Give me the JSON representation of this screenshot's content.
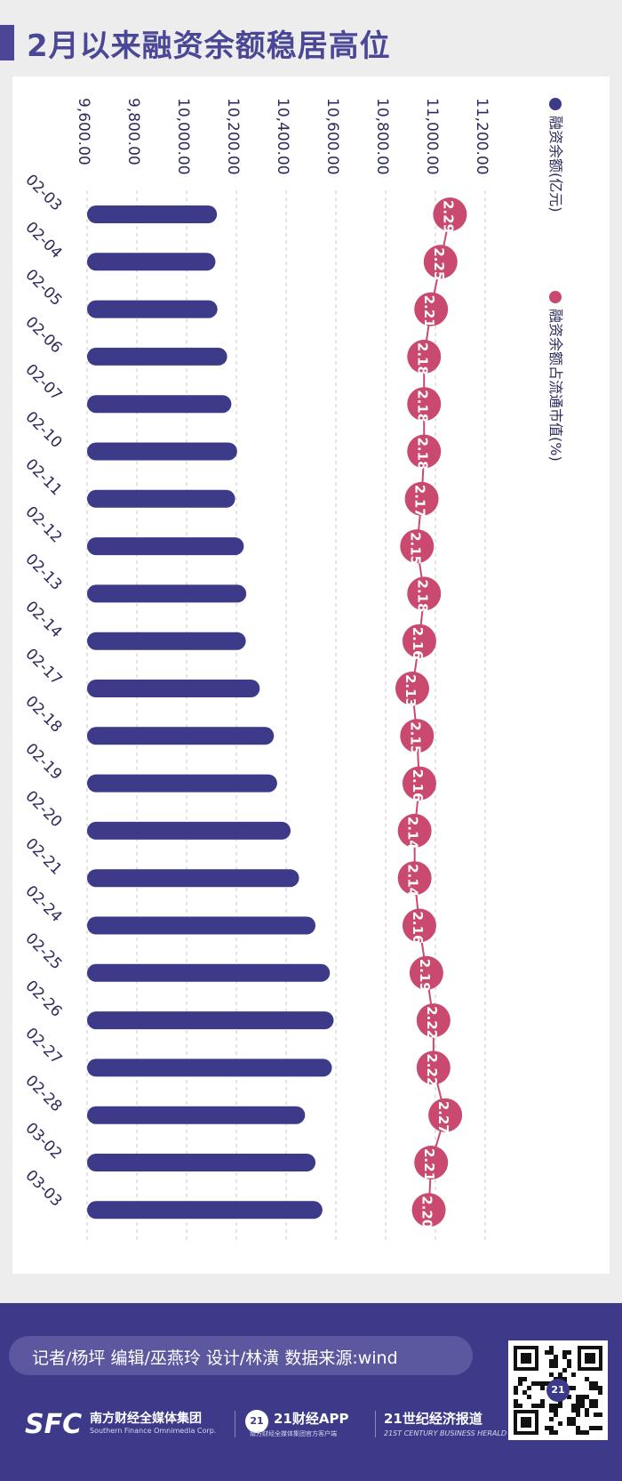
{
  "title": "2月以来融资余额稳居高位",
  "chart_data": {
    "type": "bar",
    "categories": [
      "02-03",
      "02-04",
      "02-05",
      "02-06",
      "02-07",
      "02-10",
      "02-11",
      "02-12",
      "02-13",
      "02-14",
      "02-17",
      "02-18",
      "02-19",
      "02-20",
      "02-21",
      "02-24",
      "02-25",
      "02-26",
      "02-27",
      "02-28",
      "03-02",
      "03-03"
    ],
    "series": [
      {
        "name": "融资余额(亿元)",
        "type": "bar",
        "color": "#3d3a8a",
        "values": [
          10122,
          10116,
          10124,
          10163,
          10180,
          10203,
          10195,
          10230,
          10240,
          10238,
          10294,
          10351,
          10364,
          10418,
          10452,
          10518,
          10576,
          10591,
          10584,
          10476,
          10518,
          10546
        ]
      },
      {
        "name": "融资余额占流通市值(%)",
        "type": "line",
        "color": "#c94a6e",
        "values": [
          2.29,
          2.25,
          2.21,
          2.18,
          2.18,
          2.18,
          2.17,
          2.15,
          2.18,
          2.16,
          2.13,
          2.15,
          2.16,
          2.14,
          2.14,
          2.16,
          2.19,
          2.22,
          2.22,
          2.27,
          2.21,
          2.2
        ]
      }
    ],
    "value_axis": {
      "min": 9600,
      "max": 11200,
      "ticks": [
        "9,600.00",
        "9,800.00",
        "10,000.00",
        "10,200.00",
        "10,400.00",
        "10,600.00",
        "10,800.00",
        "11,000.00",
        "11,200.00"
      ]
    },
    "grid": true,
    "legend_position": "top-right"
  },
  "footer": {
    "credits": "记者/杨坪  编辑/巫燕玲  设计/林潢  数据来源:wind",
    "sfc_logo": "SFC",
    "sfc_name": "南方财经全媒体集团",
    "sfc_name_en": "Southern Finance Omnimedia Corp.",
    "badge": "21",
    "app_name": "21财经APP",
    "app_sub": "南方财经全媒体集团官方客户端",
    "herald_name": "21世纪经济报道",
    "herald_name_en": "21ST CENTURY BUSINESS HERALD"
  },
  "colors": {
    "accent": "#4a4796",
    "bar": "#3d3a8a",
    "ratio": "#c94a6e",
    "footer_bg": "#3d3a8a"
  },
  "icons": [
    "qr-code"
  ]
}
